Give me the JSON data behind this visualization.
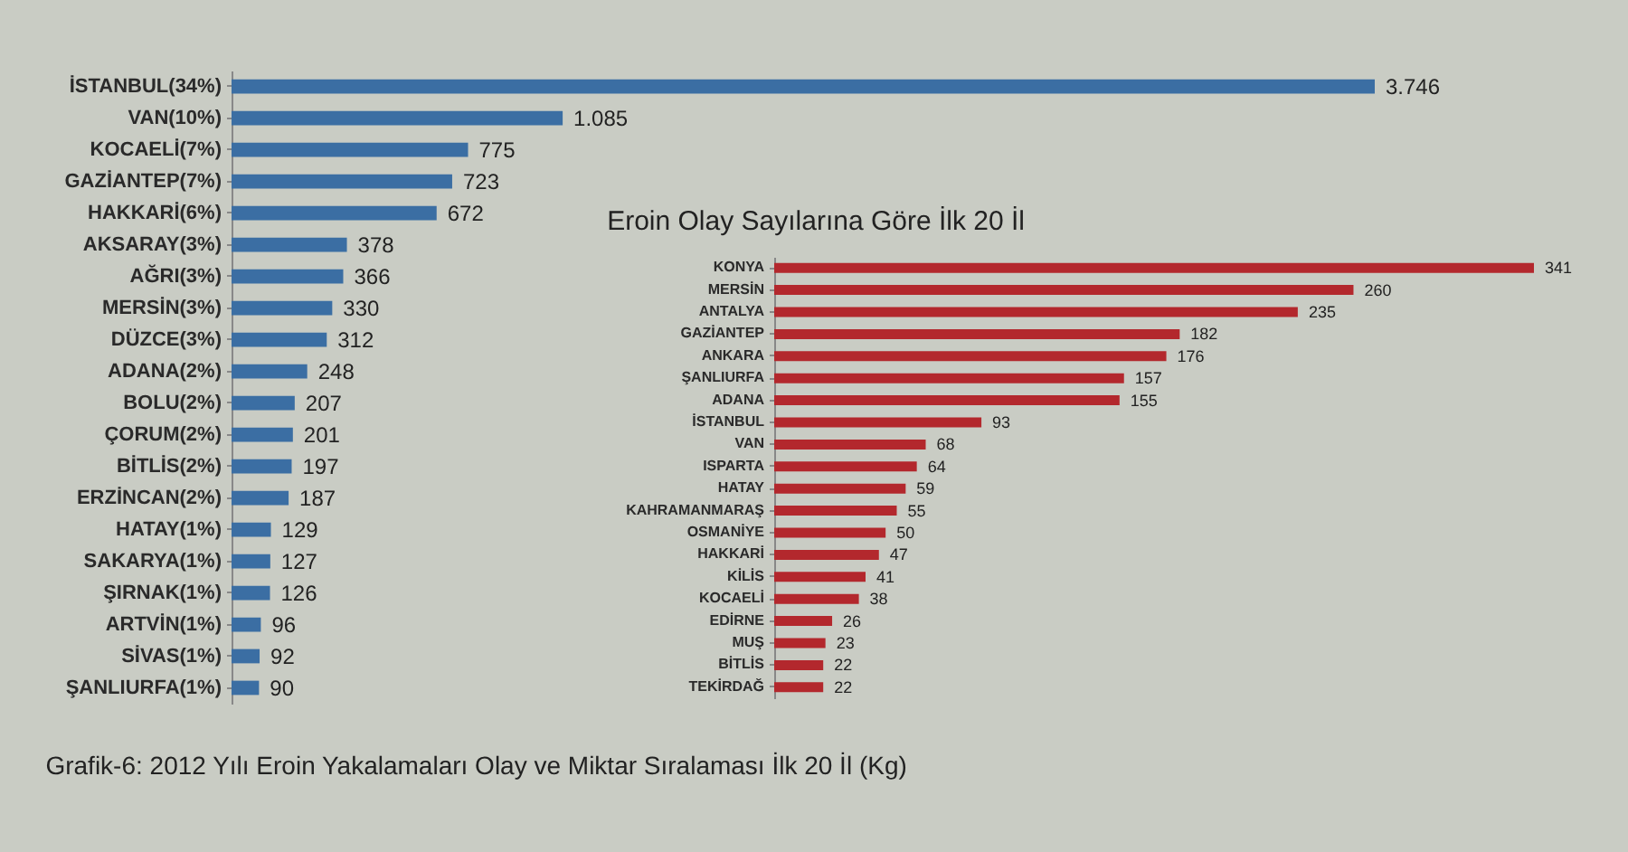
{
  "chart_data": [
    {
      "type": "bar",
      "orientation": "horizontal",
      "title": "Grafik-6: 2012 Yılı Eroin Yakalamaları Olay ve Miktar Sıralaması İlk 20 İl (Kg)",
      "color": "#3b6ea3",
      "categories": [
        "İSTANBUL(34%)",
        "VAN(10%)",
        "KOCAELİ(7%)",
        "GAZİANTEP(7%)",
        "HAKKARİ(6%)",
        "AKSARAY(3%)",
        "AĞRI(3%)",
        "MERSİN(3%)",
        "DÜZCE(3%)",
        "ADANA(2%)",
        "BOLU(2%)",
        "ÇORUM(2%)",
        "BİTLİS(2%)",
        "ERZİNCAN(2%)",
        "HATAY(1%)",
        "SAKARYA(1%)",
        "ŞIRNAK(1%)",
        "ARTVİN(1%)",
        "SİVAS(1%)",
        "ŞANLIURFA(1%)"
      ],
      "values": [
        3746,
        1085,
        775,
        723,
        672,
        378,
        366,
        330,
        312,
        248,
        207,
        201,
        197,
        187,
        129,
        127,
        126,
        96,
        92,
        90
      ],
      "value_labels": [
        "3.746",
        "1.085",
        "775",
        "723",
        "672",
        "378",
        "366",
        "330",
        "312",
        "248",
        "207",
        "201",
        "197",
        "187",
        "129",
        "127",
        "126",
        "96",
        "92",
        "90"
      ]
    },
    {
      "type": "bar",
      "orientation": "horizontal",
      "title": "Eroin Olay Sayılarına Göre İlk 20 İl",
      "color": "#b3282d",
      "data_labels": true,
      "categories": [
        "KONYA",
        "MERSİN",
        "ANTALYA",
        "GAZİANTEP",
        "ANKARA",
        "ŞANLIURFA",
        "ADANA",
        "İSTANBUL",
        "VAN",
        "ISPARTA",
        "HATAY",
        "KAHRAMANMARAŞ",
        "OSMANİYE",
        "HAKKARİ",
        "KİLİS",
        "KOCAELİ",
        "EDİRNE",
        "MUŞ",
        "BİTLİS",
        "TEKİRDAĞ"
      ],
      "values": [
        341,
        260,
        235,
        182,
        176,
        157,
        155,
        93,
        68,
        64,
        59,
        55,
        50,
        47,
        41,
        38,
        26,
        23,
        22,
        22
      ]
    }
  ]
}
